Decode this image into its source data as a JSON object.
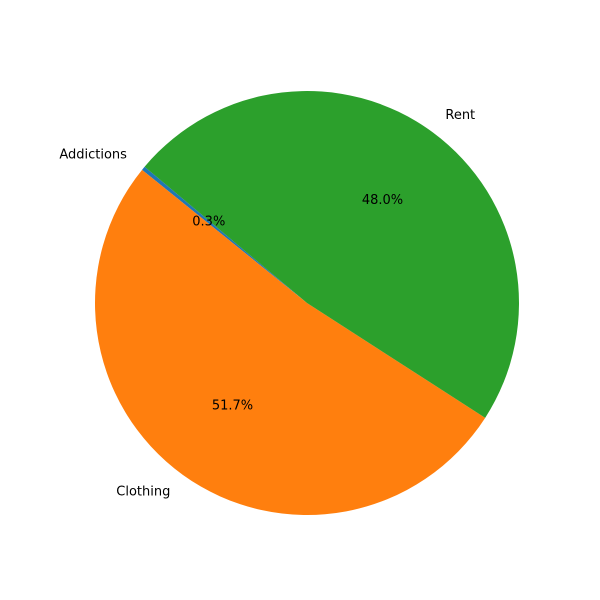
{
  "chart_data": {
    "type": "pie",
    "slices": [
      {
        "label": "Addictions",
        "value": 0.3,
        "pct_label": "0.3%",
        "color": "#1f77b4"
      },
      {
        "label": "Clothing",
        "value": 51.7,
        "pct_label": "51.7%",
        "color": "#ff7f0e"
      },
      {
        "label": "Rent",
        "value": 48.0,
        "pct_label": "48.0%",
        "color": "#2ca02c"
      }
    ],
    "start_angle_deg": 140,
    "direction": "counterclockwise"
  }
}
